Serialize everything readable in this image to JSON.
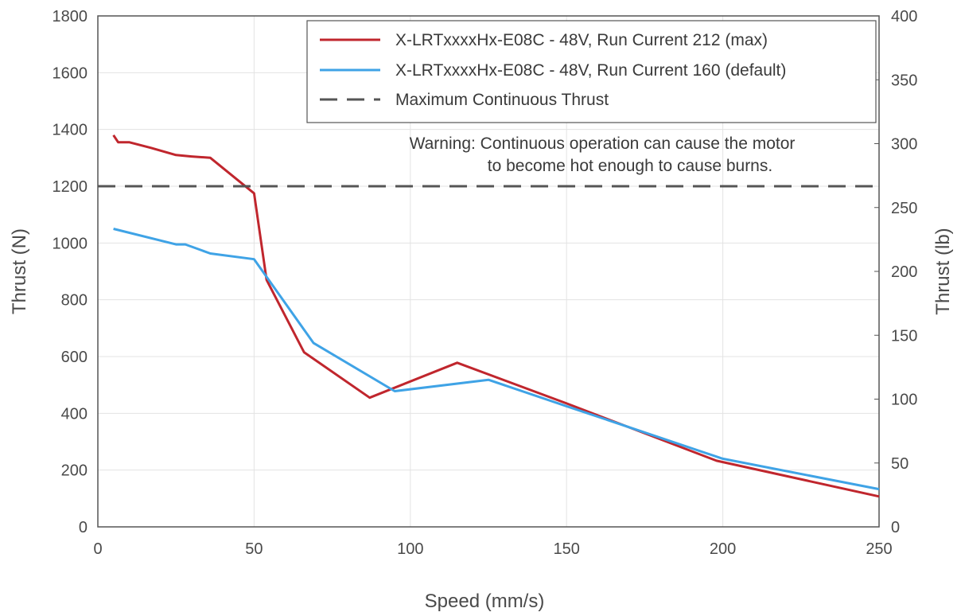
{
  "chart_data": {
    "type": "line",
    "xlabel": "Speed (mm/s)",
    "ylabel": "Thrust (N)",
    "y2label": "Thrust (lb)",
    "xlim": [
      0,
      250
    ],
    "ylim": [
      0,
      1800
    ],
    "y2lim": [
      0,
      400
    ],
    "xticks": [
      "0",
      "50",
      "100",
      "150",
      "200",
      "250"
    ],
    "yticks": [
      "0",
      "200",
      "400",
      "600",
      "800",
      "1000",
      "1200",
      "1400",
      "1600",
      "1800"
    ],
    "y2ticks": [
      "0",
      "50",
      "100",
      "150",
      "200",
      "250",
      "300",
      "350",
      "400"
    ],
    "grid": true,
    "legend_position": "top-right",
    "series": [
      {
        "name": "X-LRTxxxxHx-E08C - 48V, Run Current 212 (max)",
        "color": "#c0262d",
        "x": [
          5,
          6.5,
          10,
          17,
          25,
          30,
          36,
          50,
          54,
          66,
          87,
          115,
          150,
          198,
          250
        ],
        "y": [
          1380,
          1355,
          1355,
          1335,
          1310,
          1305,
          1300,
          1175,
          870,
          615,
          455,
          578,
          435,
          233,
          107
        ]
      },
      {
        "name": "X-LRTxxxxHx-E08C - 48V, Run Current 160 (default)",
        "color": "#3fa3e6",
        "x": [
          5,
          25,
          28,
          36,
          50,
          69,
          95,
          125,
          150,
          200,
          250
        ],
        "y": [
          1050,
          995,
          995,
          963,
          943,
          648,
          478,
          518,
          425,
          240,
          133
        ]
      },
      {
        "name": "Maximum Continuous Thrust",
        "color": "#555555",
        "dashed": true,
        "x": [
          0,
          250
        ],
        "y": [
          1200,
          1200
        ]
      }
    ],
    "annotation": {
      "line1": "Warning: Continuous operation can cause the motor",
      "line2": "to become hot enough to cause burns."
    }
  }
}
